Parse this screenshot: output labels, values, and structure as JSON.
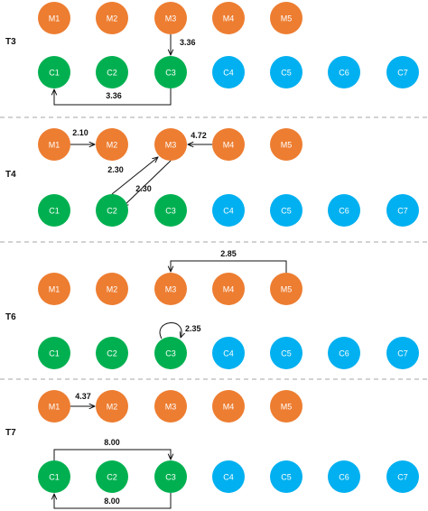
{
  "colors": {
    "M": "#ED7D31",
    "C": "#00B050",
    "C_blue": "#00B0F0"
  },
  "sections": [
    {
      "label": "T3",
      "m_nodes": [
        "M1",
        "M2",
        "M3",
        "M4",
        "M5"
      ],
      "c_nodes": [
        "C1",
        "C2",
        "C3",
        "C4",
        "C5",
        "C6",
        "C7"
      ],
      "edges": [
        {
          "from": "M3",
          "to": "C3",
          "label": "3.36"
        },
        {
          "from": "C3",
          "to": "C1",
          "label": "3.36"
        }
      ]
    },
    {
      "label": "T4",
      "m_nodes": [
        "M1",
        "M2",
        "M3",
        "M4",
        "M5"
      ],
      "c_nodes": [
        "C1",
        "C2",
        "C3",
        "C4",
        "C5",
        "C6",
        "C7"
      ],
      "edges": [
        {
          "from": "M1",
          "to": "M2",
          "label": "2.10"
        },
        {
          "from": "M4",
          "to": "M3",
          "label": "4.72"
        },
        {
          "from": "C2",
          "to": "M3",
          "label": "2.30"
        },
        {
          "from": "M3",
          "to": "C2",
          "label": "2.30"
        }
      ]
    },
    {
      "label": "T6",
      "m_nodes": [
        "M1",
        "M2",
        "M3",
        "M4",
        "M5"
      ],
      "c_nodes": [
        "C1",
        "C2",
        "C3",
        "C4",
        "C5",
        "C6",
        "C7"
      ],
      "edges": [
        {
          "from": "M5",
          "to": "M3",
          "label": "2.85"
        },
        {
          "from": "C3",
          "to": "C3",
          "label": "2.35"
        }
      ]
    },
    {
      "label": "T7",
      "m_nodes": [
        "M1",
        "M2",
        "M3",
        "M4",
        "M5"
      ],
      "c_nodes": [
        "C1",
        "C2",
        "C3",
        "C4",
        "C5",
        "C6",
        "C7"
      ],
      "edges": [
        {
          "from": "M1",
          "to": "M2",
          "label": "4.37"
        },
        {
          "from": "C1",
          "to": "C3",
          "label": "8.00"
        },
        {
          "from": "C3",
          "to": "C1",
          "label": "8.00"
        }
      ]
    }
  ]
}
